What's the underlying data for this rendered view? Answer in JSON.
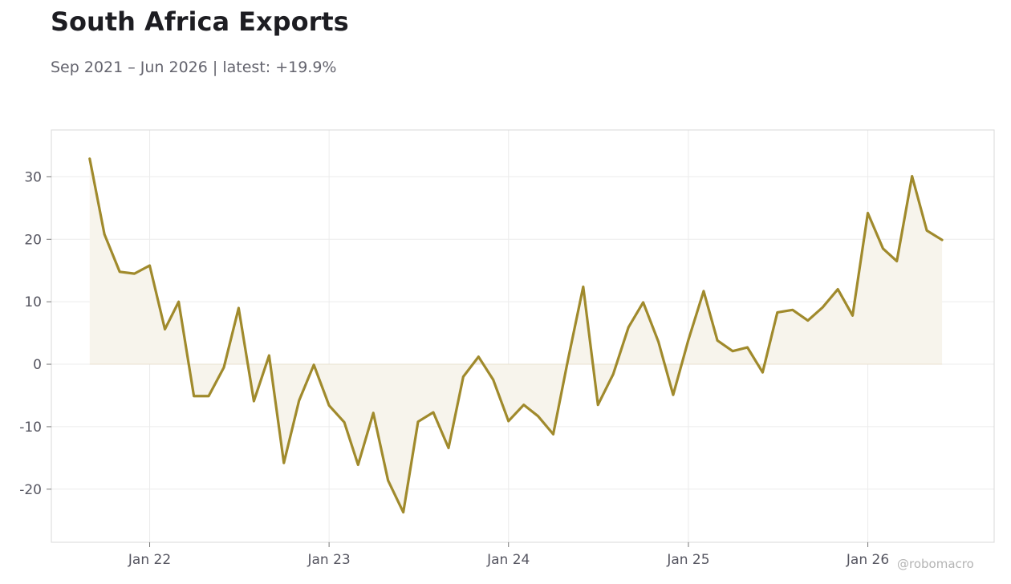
{
  "title": "South Africa Exports",
  "subtitle": "Sep 2021 – Jun 2026 | latest: +19.9%",
  "watermark": "@robomacro",
  "colors": {
    "line": "#a08a2c",
    "fill": "#f7f4ec",
    "grid": "#ececec",
    "frame": "#d8d8d8"
  },
  "chart_data": {
    "type": "line",
    "title": "South Africa Exports",
    "subtitle": "Sep 2021 – Jun 2026 | latest: +19.9%",
    "xlabel": "",
    "ylabel": "",
    "grid": true,
    "legend": "none",
    "fill_to_zero": true,
    "ylim": [
      -28.5,
      37.5
    ],
    "xlim": [
      "2021-06-15",
      "2026-09-15"
    ],
    "yticks": [
      -20,
      -10,
      0,
      10,
      20,
      30
    ],
    "ytick_labels": [
      "-20",
      "-10",
      "0",
      "10",
      "20",
      "30"
    ],
    "xticks": [
      "2022-01-01",
      "2023-01-01",
      "2024-01-01",
      "2025-01-01",
      "2026-01-01"
    ],
    "xtick_labels": [
      "Jan 22",
      "Jan 23",
      "Jan 24",
      "Jan 25",
      "Jan 26"
    ],
    "x": [
      "2021-09",
      "2021-10",
      "2021-11",
      "2021-12",
      "2022-01",
      "2022-02",
      "2022-03",
      "2022-04",
      "2022-05",
      "2022-06",
      "2022-07",
      "2022-08",
      "2022-09",
      "2022-10",
      "2022-11",
      "2022-12",
      "2023-01",
      "2023-02",
      "2023-03",
      "2023-04",
      "2023-05",
      "2023-06",
      "2023-07",
      "2023-08",
      "2023-09",
      "2023-10",
      "2023-11",
      "2023-12",
      "2024-01",
      "2024-02",
      "2024-03",
      "2024-04",
      "2024-05",
      "2024-06",
      "2024-07",
      "2024-08",
      "2024-09",
      "2024-10",
      "2024-11",
      "2024-12",
      "2025-01",
      "2025-02",
      "2025-03",
      "2025-04",
      "2025-05",
      "2025-06",
      "2025-07",
      "2025-08",
      "2025-09",
      "2025-10",
      "2025-11",
      "2025-12",
      "2026-01",
      "2026-02",
      "2026-03",
      "2026-04",
      "2026-05",
      "2026-06"
    ],
    "series": [
      {
        "values": [
          32.9,
          20.8,
          14.8,
          14.5,
          15.8,
          5.6,
          10.0,
          -5.1,
          -5.1,
          -0.5,
          9.0,
          -5.9,
          1.4,
          -15.8,
          -5.8,
          -0.1,
          -6.6,
          -9.3,
          -16.1,
          -7.8,
          -18.6,
          -23.7,
          -9.2,
          -7.7,
          -13.4,
          -2.0,
          1.2,
          -2.5,
          -9.1,
          -6.5,
          -8.3,
          -11.2,
          0.7,
          12.4,
          -6.5,
          -1.6,
          5.9,
          9.9,
          3.6,
          -4.9,
          3.9,
          11.7,
          3.8,
          2.1,
          2.7,
          -1.3,
          8.3,
          8.7,
          7.0,
          9.1,
          12.0,
          7.8,
          24.2,
          18.5,
          16.5,
          30.1,
          21.4,
          19.9
        ]
      }
    ]
  }
}
